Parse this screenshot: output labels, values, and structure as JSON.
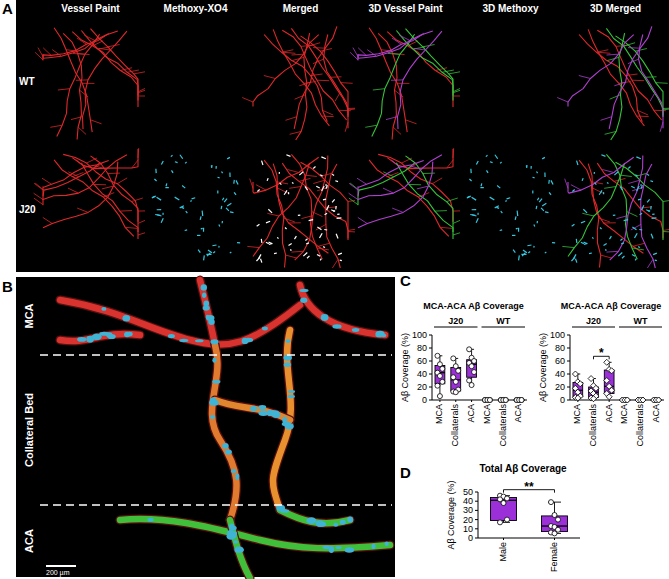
{
  "figure": {
    "panel_a": {
      "letter": "A",
      "columns": [
        "Vessel Paint",
        "Methoxy-XO4",
        "Merged",
        "3D Vessel Paint",
        "3D Methoxy",
        "3D Merged"
      ],
      "rows": [
        "WT",
        "J20"
      ]
    },
    "panel_b": {
      "letter": "B",
      "regions": [
        "MCA",
        "Collateral Bed",
        "ACA"
      ],
      "scale_bar": "200 µm"
    },
    "panel_c_letter": "C",
    "panel_d_letter": "D"
  },
  "chart_data": [
    {
      "type": "box",
      "title": "MCA-ACA Aβ Coverage",
      "y_label": "Aβ Coverage (%)",
      "categories": [
        "MCA",
        "Collaterals",
        "ACA",
        "MCA",
        "Collaterals",
        "ACA"
      ],
      "groups": [
        {
          "label": "J20",
          "size": 3
        },
        {
          "label": "WT",
          "size": 3
        }
      ],
      "ylim": [
        0,
        100
      ],
      "yticks": [
        0,
        20,
        40,
        60,
        80,
        100
      ],
      "color": "#9b30d9",
      "marker": "circle",
      "boxes": [
        {
          "min": 6,
          "q1": 25,
          "median": 42,
          "q3": 53,
          "max": 68,
          "points": [
            68,
            55,
            48,
            42,
            37,
            28,
            22,
            6
          ]
        },
        {
          "min": 12,
          "q1": 14,
          "median": 31,
          "q3": 50,
          "max": 64,
          "points": [
            64,
            52,
            45,
            35,
            28,
            16,
            13,
            12
          ]
        },
        {
          "min": 23,
          "q1": 35,
          "median": 55,
          "q3": 62,
          "max": 78,
          "points": [
            78,
            65,
            60,
            57,
            52,
            43,
            30,
            23
          ]
        },
        {
          "min": 0,
          "q1": 0,
          "median": 0,
          "q3": 0,
          "max": 0,
          "points": [
            0,
            0,
            0,
            0,
            0,
            0
          ]
        },
        {
          "min": 0,
          "q1": 0,
          "median": 0,
          "q3": 0,
          "max": 0,
          "points": [
            0,
            0,
            0,
            0,
            0,
            0
          ]
        },
        {
          "min": 0,
          "q1": 0,
          "median": 0,
          "q3": 0,
          "max": 0,
          "points": [
            0,
            0,
            0,
            0,
            0,
            0
          ]
        }
      ],
      "annotations": []
    },
    {
      "type": "box",
      "title": "MCA-ACA Aβ Coverage",
      "y_label": "Aβ Coverage (%)",
      "categories": [
        "MCA",
        "Collaterals",
        "ACA",
        "MCA",
        "Collaterals",
        "ACA"
      ],
      "groups": [
        {
          "label": "J20",
          "size": 3
        },
        {
          "label": "WT",
          "size": 3
        }
      ],
      "ylim": [
        0,
        100
      ],
      "yticks": [
        0,
        20,
        40,
        60,
        80,
        100
      ],
      "color": "#9b30d9",
      "marker": "diamond",
      "boxes": [
        {
          "min": 3,
          "q1": 5,
          "median": 15,
          "q3": 27,
          "max": 40,
          "points": [
            40,
            28,
            25,
            18,
            12,
            6,
            4,
            3
          ]
        },
        {
          "min": 2,
          "q1": 4,
          "median": 12,
          "q3": 20,
          "max": 33,
          "points": [
            33,
            22,
            18,
            14,
            10,
            6,
            3,
            2
          ]
        },
        {
          "min": 5,
          "q1": 10,
          "median": 21,
          "q3": 46,
          "max": 58,
          "points": [
            58,
            47,
            45,
            30,
            21,
            15,
            10,
            5
          ]
        },
        {
          "min": 0,
          "q1": 0,
          "median": 0,
          "q3": 0,
          "max": 0,
          "points": [
            0,
            0,
            0,
            0,
            0,
            0
          ]
        },
        {
          "min": 0,
          "q1": 0,
          "median": 0,
          "q3": 0,
          "max": 0,
          "points": [
            0,
            0,
            0,
            0,
            0,
            0
          ]
        },
        {
          "min": 0,
          "q1": 0,
          "median": 0,
          "q3": 0,
          "max": 0,
          "points": [
            0,
            0,
            0,
            0,
            0,
            0
          ]
        }
      ],
      "annotations": [
        {
          "text": "*",
          "from": 1,
          "to": 2
        }
      ]
    },
    {
      "type": "box",
      "title": "Total Aβ Coverage",
      "y_label": "Aβ Coverage (%)",
      "categories": [
        "Male",
        "Female"
      ],
      "ylim": [
        0,
        50
      ],
      "yticks": [
        0,
        10,
        20,
        30,
        40,
        50
      ],
      "color": "#9b30d9",
      "marker": "circle",
      "boxes": [
        {
          "min": 17,
          "q1": 19,
          "median": 41,
          "q3": 44,
          "max": 46,
          "points": [
            46,
            45,
            43,
            42,
            38,
            20,
            17
          ]
        },
        {
          "min": 5,
          "q1": 7,
          "median": 13,
          "q3": 24,
          "max": 39,
          "points": [
            39,
            25,
            20,
            13,
            12,
            9,
            6,
            5
          ]
        }
      ],
      "annotations": [
        {
          "text": "**",
          "from": 0,
          "to": 1
        }
      ]
    }
  ]
}
